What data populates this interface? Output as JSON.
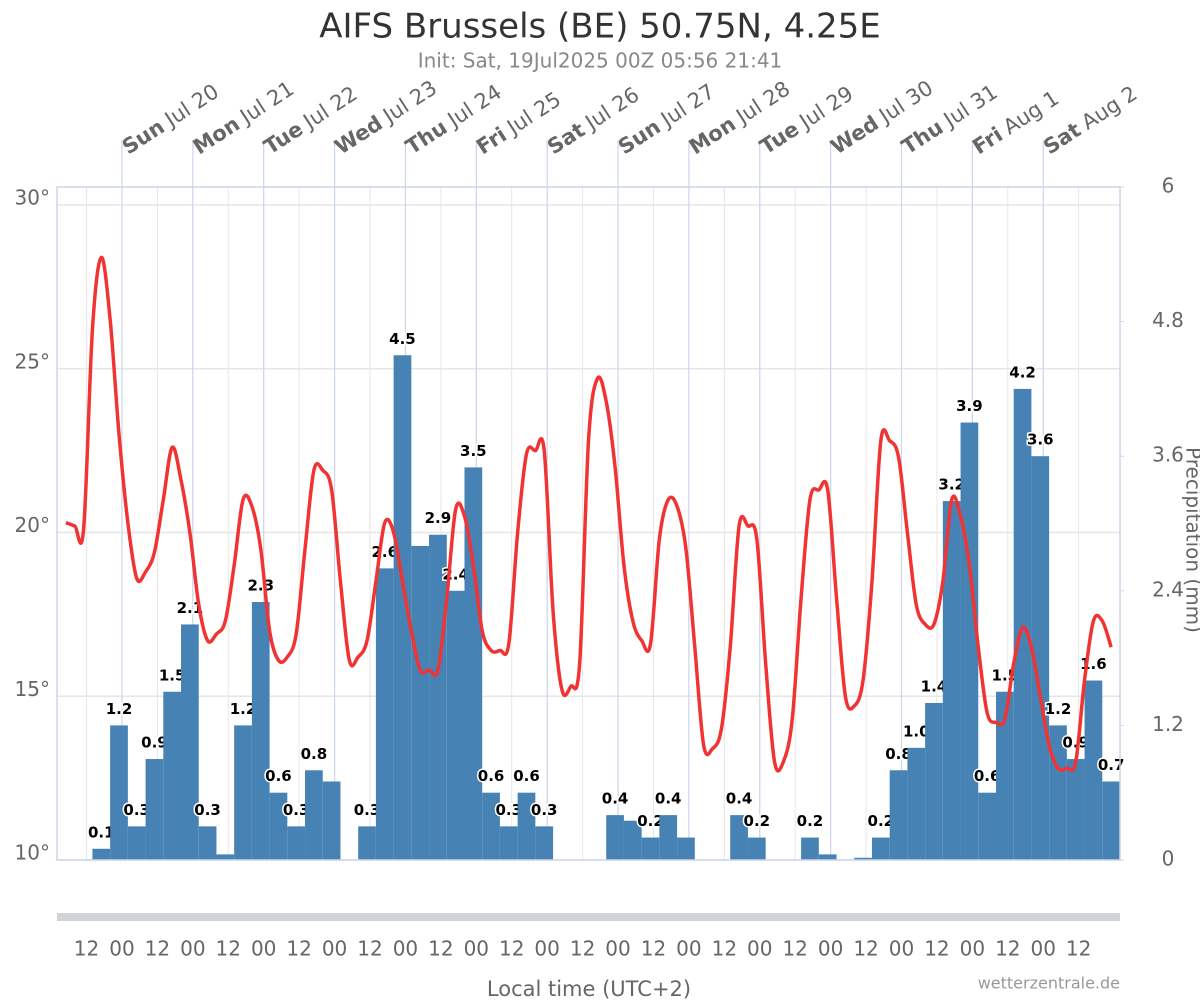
{
  "chart_data": {
    "type": "bar",
    "title": "AIFS Brussels (BE) 50.75N, 4.25E",
    "subtitle": "Init: Sat, 19Jul2025 00Z 05:56 21:41",
    "day_labels": [
      {
        "weekday": "Sun",
        "date": "Jul 20"
      },
      {
        "weekday": "Mon",
        "date": "Jul 21"
      },
      {
        "weekday": "Tue",
        "date": "Jul 22"
      },
      {
        "weekday": "Wed",
        "date": "Jul 23"
      },
      {
        "weekday": "Thu",
        "date": "Jul 24"
      },
      {
        "weekday": "Fri",
        "date": "Jul 25"
      },
      {
        "weekday": "Sat",
        "date": "Jul 26"
      },
      {
        "weekday": "Sun",
        "date": "Jul 27"
      },
      {
        "weekday": "Mon",
        "date": "Jul 28"
      },
      {
        "weekday": "Tue",
        "date": "Jul 29"
      },
      {
        "weekday": "Wed",
        "date": "Jul 30"
      },
      {
        "weekday": "Thu",
        "date": "Jul 31"
      },
      {
        "weekday": "Fri",
        "date": "Aug 1"
      },
      {
        "weekday": "Sat",
        "date": "Aug 2"
      }
    ],
    "x_labels": [
      "12",
      "00",
      "12",
      "00",
      "12",
      "00",
      "12",
      "00",
      "12",
      "00",
      "12",
      "00",
      "12",
      "00",
      "12",
      "00",
      "12",
      "00",
      "12",
      "00",
      "12",
      "00",
      "12",
      "00",
      "12",
      "00",
      "12",
      "00",
      "12"
    ],
    "x_title": "Local time (UTC+2)",
    "ylim": [
      10,
      30.55
    ],
    "yticks": [
      {
        "value": 10,
        "label": "10°"
      },
      {
        "value": 15,
        "label": "15°"
      },
      {
        "value": 20,
        "label": "20°"
      },
      {
        "value": 25,
        "label": "25°"
      },
      {
        "value": 30,
        "label": "30°"
      }
    ],
    "y2lim": [
      0,
      6
    ],
    "y2ticks": [
      0,
      1.2,
      2.4,
      3.6,
      4.8,
      6
    ],
    "y2_title": "Precipitation (mm)",
    "grid": true,
    "series": [
      {
        "type": "line",
        "color": "#f03434",
        "values": [
          null,
          20.3,
          20.2,
          20.1,
          26.2,
          28.4,
          26.5,
          23.0,
          20.3,
          18.6,
          18.8,
          19.4,
          21.0,
          22.6,
          21.6,
          20.0,
          17.8,
          16.7,
          16.9,
          17.3,
          19.0,
          21.0,
          20.8,
          19.5,
          17.0,
          16.1,
          16.2,
          16.9,
          19.5,
          21.9,
          21.9,
          21.3,
          18.5,
          16.1,
          16.2,
          16.7,
          18.5,
          20.3,
          20.0,
          18.5,
          17.0,
          15.8,
          15.8,
          15.8,
          18.0,
          20.7,
          20.5,
          19.0,
          17.0,
          16.4,
          16.4,
          16.6,
          20.0,
          22.4,
          22.5,
          22.5,
          17.6,
          15.2,
          15.3,
          16.0,
          22.8,
          24.7,
          24.0,
          22.0,
          19.0,
          17.3,
          16.7,
          16.6,
          19.8,
          21.0,
          20.8,
          19.5,
          16.5,
          13.5,
          13.4,
          14.0,
          16.5,
          20.2,
          20.2,
          19.8,
          16.0,
          13.0,
          13.0,
          14.3,
          18.0,
          21.0,
          21.3,
          21.3,
          18.0,
          15.0,
          14.7,
          15.5,
          18.5,
          22.8,
          22.8,
          22.3,
          20.0,
          17.8,
          17.2,
          17.2,
          18.5,
          21.0,
          20.5,
          19.0,
          16.5,
          14.5,
          14.2,
          14.3,
          16.0,
          17.1,
          16.5,
          15.0,
          13.5,
          12.8,
          12.8,
          13.0,
          15.5,
          17.3,
          17.3,
          16.5
        ]
      },
      {
        "type": "bar",
        "axis": "y2",
        "color": "#4682b4",
        "values": [
          0,
          0,
          0.1,
          1.2,
          0.3,
          0.9,
          1.5,
          2.1,
          0.3,
          0.05,
          1.2,
          2.3,
          0.6,
          0.3,
          0.8,
          0.7,
          0,
          0.3,
          2.6,
          4.5,
          2.8,
          2.9,
          2.4,
          3.5,
          0.6,
          0.3,
          0.6,
          0.3,
          0,
          0,
          0,
          0.4,
          0.35,
          0.2,
          0.4,
          0.2,
          0,
          0,
          0.4,
          0.2,
          0,
          0,
          0.2,
          0.05,
          0,
          0.02,
          0.2,
          0.8,
          1.0,
          1.4,
          3.2,
          3.9,
          0.6,
          1.5,
          4.2,
          3.6,
          1.2,
          0.9,
          1.6,
          0.7
        ],
        "value_labels": [
          null,
          null,
          "0.1",
          "1.2",
          "0.3",
          "0.9",
          "1.5",
          "2.1",
          "0.3",
          null,
          "1.2",
          "2.3",
          "0.6",
          "0.3",
          "0.8",
          null,
          null,
          "0.3",
          "2.6",
          "4.5",
          null,
          "2.9",
          "2.4",
          "3.5",
          "0.6",
          "0.3",
          "0.6",
          "0.3",
          null,
          null,
          null,
          "0.4",
          null,
          "0.2",
          "0.4",
          null,
          null,
          null,
          "0.4",
          "0.2",
          null,
          null,
          "0.2",
          null,
          null,
          null,
          "0.2",
          "0.8",
          "1.0",
          "1.4",
          "3.2",
          "3.9",
          "0.6",
          "1.5",
          "4.2",
          "3.6",
          "1.2",
          "0.9",
          "1.6",
          "0.7"
        ]
      }
    ],
    "source": "wetterzentrale.de"
  }
}
